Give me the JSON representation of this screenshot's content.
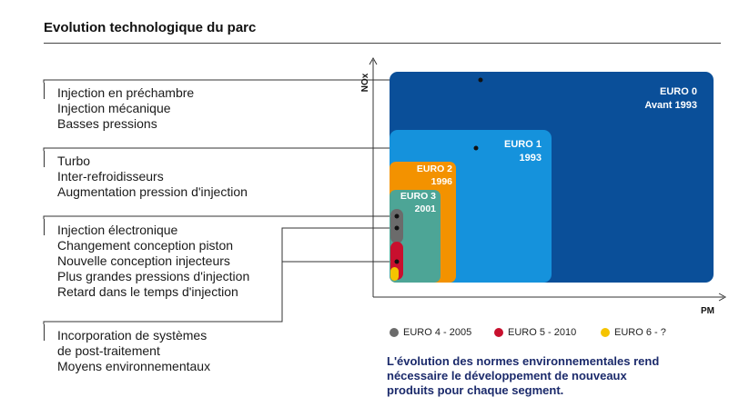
{
  "title": "Evolution technologique du parc",
  "groups": [
    {
      "lines": [
        "Injection en préchambre",
        "Injection mécanique",
        "Basses pressions"
      ]
    },
    {
      "lines": [
        "Turbo",
        "Inter-refroidisseurs",
        "Augmentation pression d'injection"
      ]
    },
    {
      "lines": [
        "Injection électronique",
        "Changement conception piston",
        "Nouvelle conception injecteurs",
        "Plus grandes pressions d'injection",
        "Retard dans le temps d'injection"
      ]
    },
    {
      "lines": [
        "Incorporation de systèmes",
        "de post-traitement",
        "Moyens environnementaux"
      ]
    }
  ],
  "axes": {
    "y_label": "NOx",
    "x_label": "PM"
  },
  "standards": [
    {
      "name": "EURO 0",
      "year": "Avant 1993",
      "color": "#0a4f99"
    },
    {
      "name": "EURO 1",
      "year": "1993",
      "color": "#1592dc"
    },
    {
      "name": "EURO 2",
      "year": "1996",
      "color": "#f39200"
    },
    {
      "name": "EURO 3",
      "year": "2001",
      "color": "#4da596"
    }
  ],
  "legend": [
    {
      "label": "EURO 4 - 2005",
      "color": "#6b6b6b"
    },
    {
      "label": "EURO 5 - 2010",
      "color": "#c8102e"
    },
    {
      "label": "EURO 6 - ?",
      "color": "#f5c400"
    }
  ],
  "conclusion": [
    "L'évolution des normes environnementales rend",
    "nécessaire le développement de nouveaux",
    "produits pour chaque segment."
  ]
}
